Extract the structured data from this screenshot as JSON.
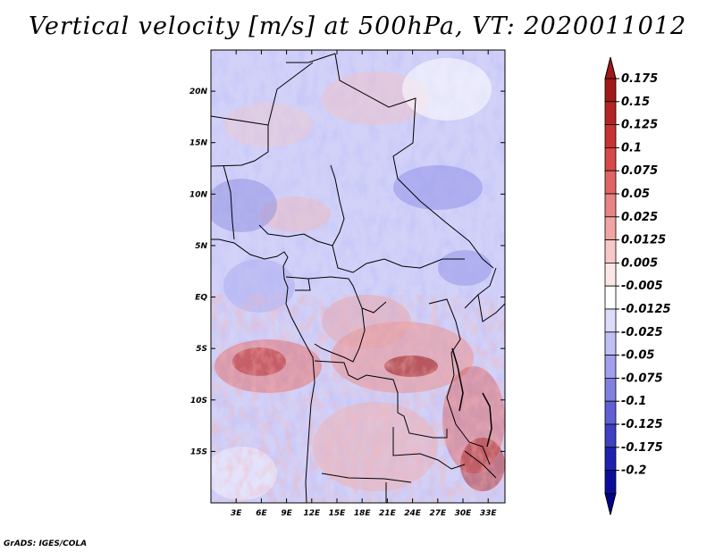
{
  "title": "Vertical velocity [m/s] at 500hPa, VT: 2020011012",
  "credit": "GrADS: IGES/COLA",
  "map": {
    "lon_range": [
      0,
      35
    ],
    "lat_range": [
      -20,
      24
    ],
    "x_ticks": [
      "3E",
      "6E",
      "9E",
      "12E",
      "15E",
      "18E",
      "21E",
      "24E",
      "27E",
      "30E",
      "33E"
    ],
    "x_tick_values": [
      3,
      6,
      9,
      12,
      15,
      18,
      21,
      24,
      27,
      30,
      33
    ],
    "y_ticks": [
      "20N",
      "15N",
      "10N",
      "5N",
      "EQ",
      "5S",
      "10S",
      "15S"
    ],
    "y_tick_values": [
      20,
      15,
      10,
      5,
      0,
      -5,
      -10,
      -15
    ]
  },
  "colorbar": {
    "labels": [
      "0.175",
      "0.15",
      "0.125",
      "0.1",
      "0.075",
      "0.05",
      "0.025",
      "0.0125",
      "0.005",
      "-0.005",
      "-0.0125",
      "-0.025",
      "-0.05",
      "-0.075",
      "-0.1",
      "-0.125",
      "-0.175",
      "-0.2"
    ],
    "colors": [
      "#a01818",
      "#b42424",
      "#c83232",
      "#d84848",
      "#e06464",
      "#e88484",
      "#f0a4a4",
      "#f8c8c8",
      "#fde6e6",
      "#ffffff",
      "#dcdcfa",
      "#c0c0f4",
      "#a0a0ec",
      "#8080e0",
      "#6060d4",
      "#4040c4",
      "#2020b0",
      "#0c0c9c",
      "#00008a"
    ],
    "top_color": "#a01818",
    "bottom_color": "#00008a"
  }
}
